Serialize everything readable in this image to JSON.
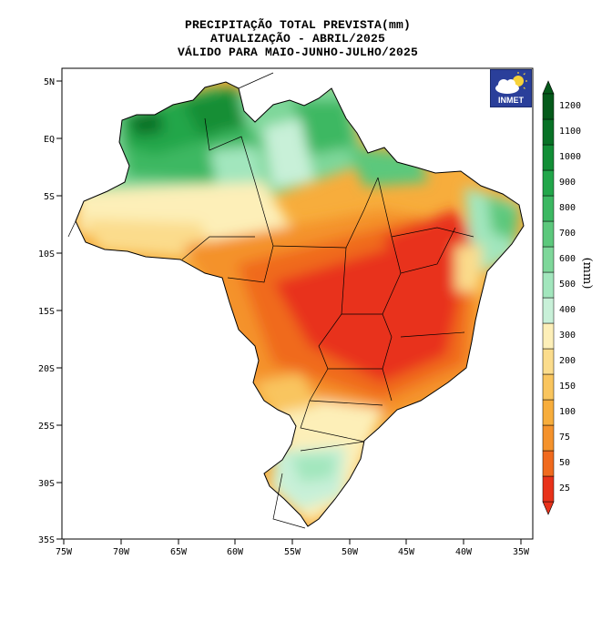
{
  "title": {
    "line1": "PRECIPITAÇÃO TOTAL PREVISTA(mm)",
    "line2": "ATUALIZAÇÃO - ABRIL/2025",
    "line3": "VÁLIDO PARA MAIO-JUNHO-JULHO/2025"
  },
  "logo": {
    "text": "INMET",
    "icon": "cloud-sun-icon"
  },
  "axes": {
    "lon_ticks": [
      "75W",
      "70W",
      "65W",
      "60W",
      "55W",
      "50W",
      "45W",
      "40W",
      "35W"
    ],
    "lat_ticks": [
      "5N",
      "EQ",
      "5S",
      "10S",
      "15S",
      "20S",
      "25S",
      "30S",
      "35S"
    ]
  },
  "colorbar": {
    "unit": "(mm)",
    "levels": [
      "25",
      "50",
      "75",
      "100",
      "150",
      "200",
      "300",
      "400",
      "500",
      "600",
      "700",
      "800",
      "900",
      "1000",
      "1100",
      "1200"
    ],
    "colors": [
      "#e8321a",
      "#f06a1e",
      "#f4922c",
      "#f7ad3c",
      "#f9c55e",
      "#fbdc8c",
      "#fdefb8",
      "#c8f0d8",
      "#a2e6bd",
      "#7ed79a",
      "#5cc87c",
      "#3cb862",
      "#22a64a",
      "#128e36",
      "#087226",
      "#045a1a"
    ]
  }
}
